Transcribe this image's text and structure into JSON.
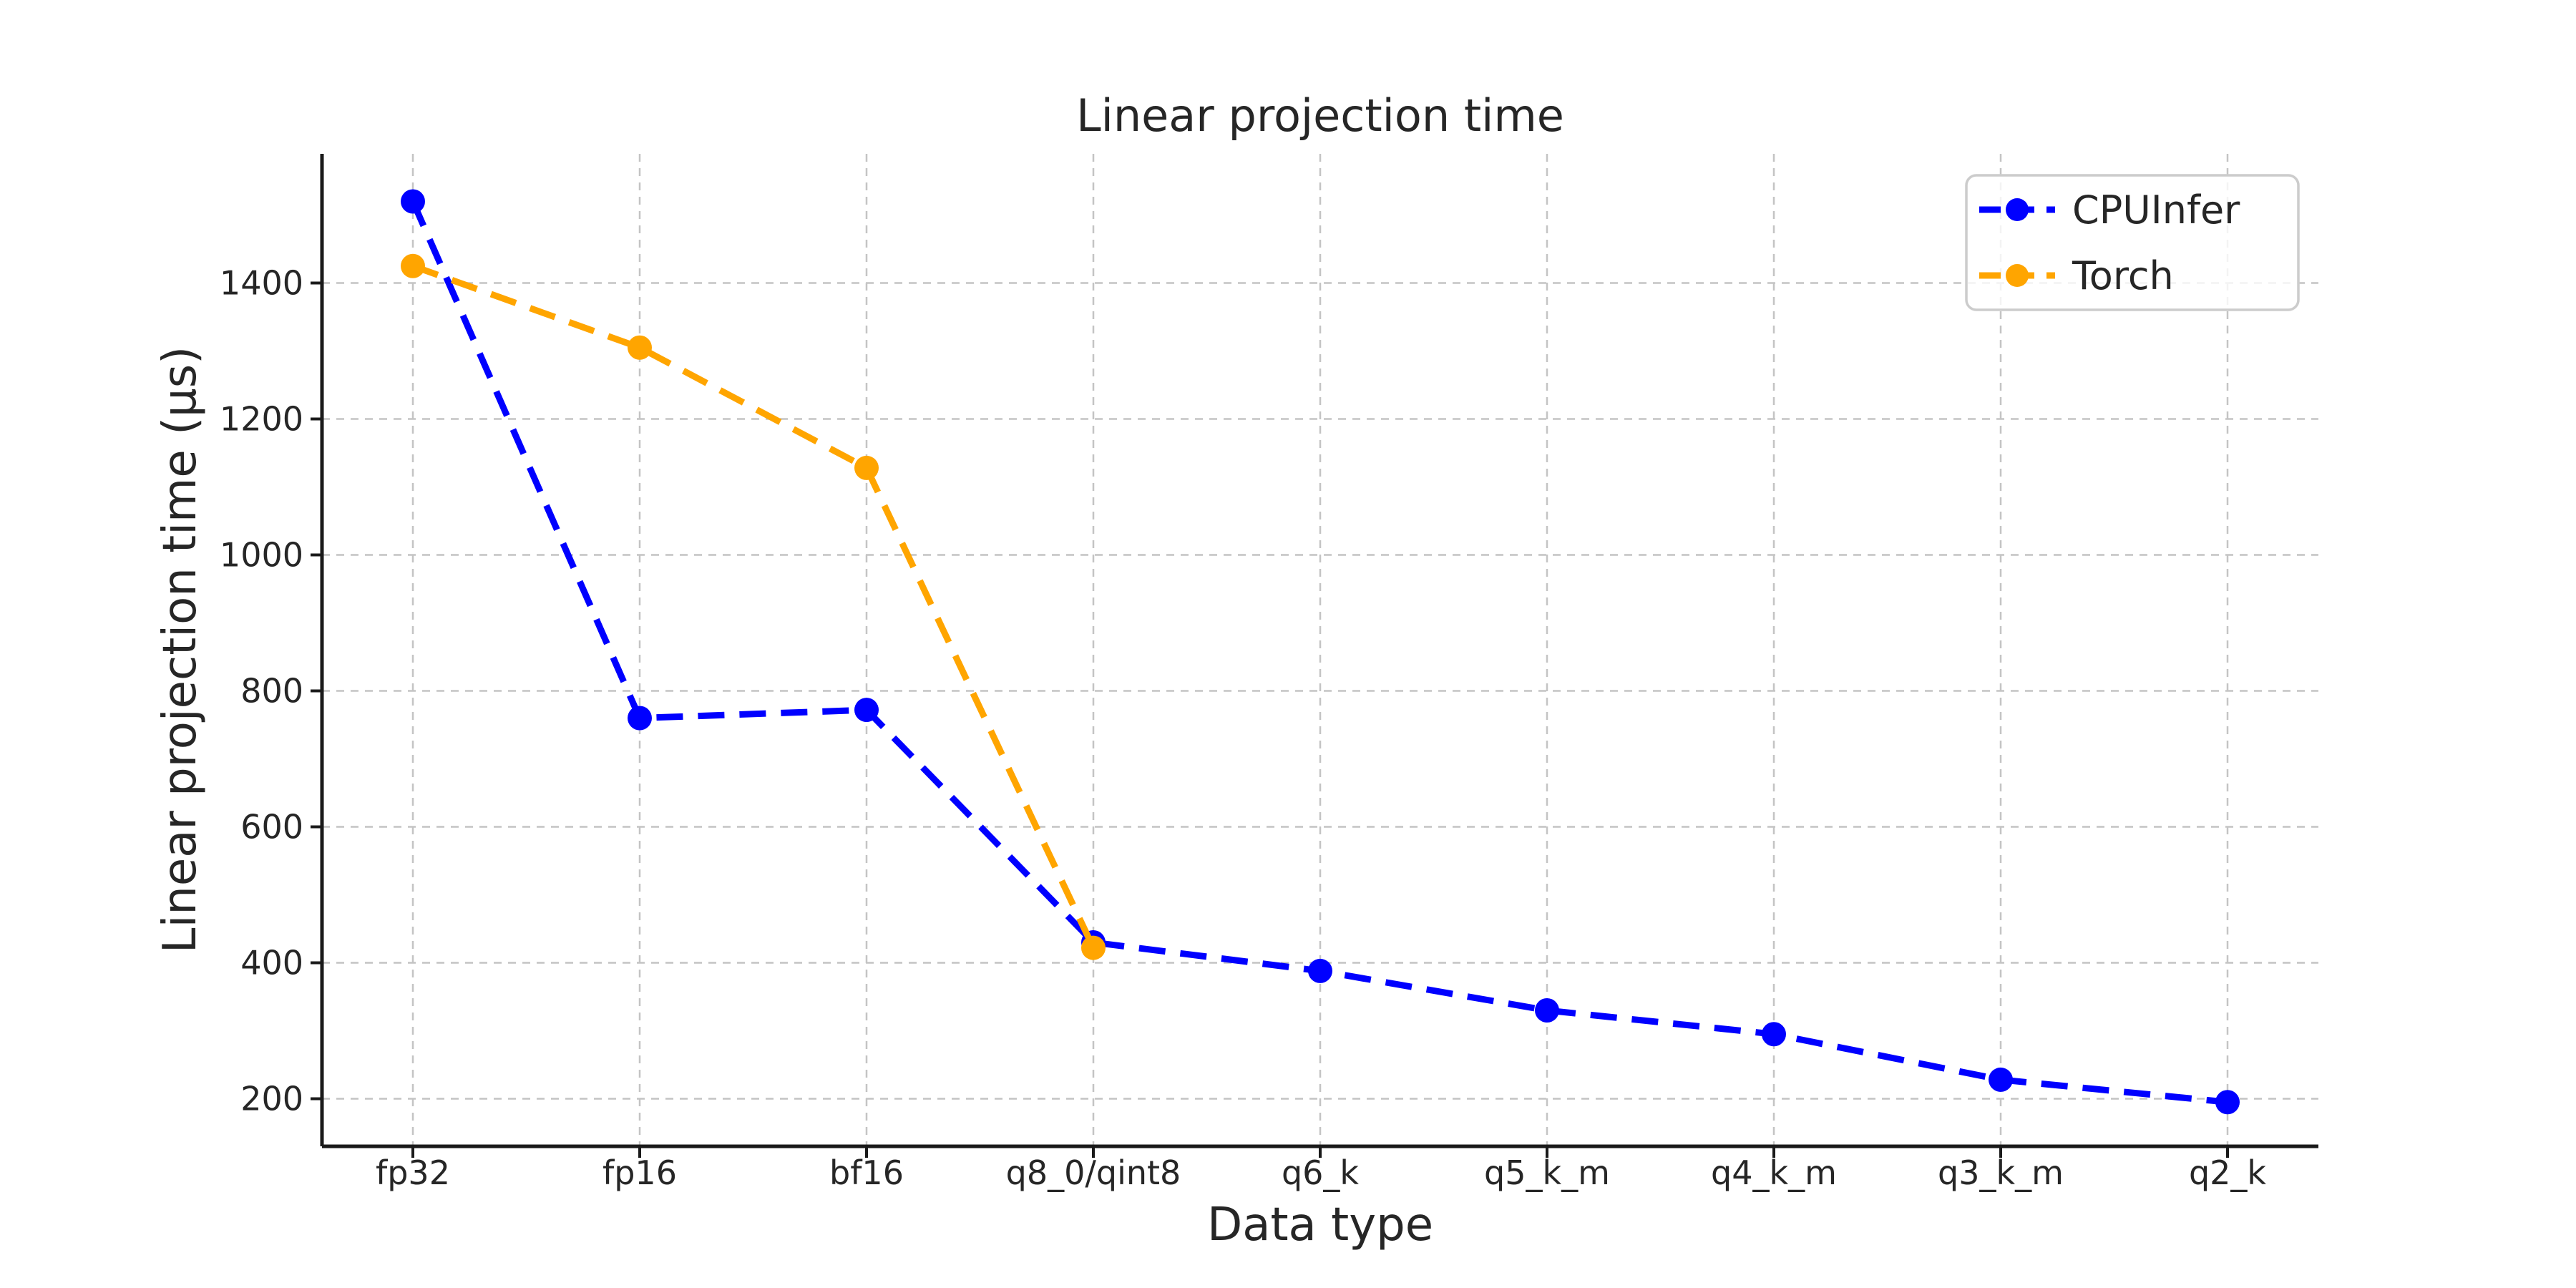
{
  "chart_data": {
    "type": "line",
    "title": "Linear projection time",
    "xlabel": "Data type",
    "ylabel": "Linear projection time (μs)",
    "categories": [
      "fp32",
      "fp16",
      "bf16",
      "q8_0/qint8",
      "q6_k",
      "q5_k_m",
      "q4_k_m",
      "q3_k_m",
      "q2_k"
    ],
    "series": [
      {
        "name": "CPUInfer",
        "color": "#0000ff",
        "values": [
          1520,
          760,
          772,
          430,
          388,
          330,
          295,
          228,
          195
        ]
      },
      {
        "name": "Torch",
        "color": "#ffa500",
        "values": [
          1425,
          1305,
          1128,
          422,
          null,
          null,
          null,
          null,
          null
        ]
      }
    ],
    "yticks": [
      200,
      400,
      600,
      800,
      1000,
      1200,
      1400
    ],
    "ylim": [
      130,
      1590
    ],
    "grid": true,
    "grid_style": "dashed",
    "line_style": "dashed",
    "marker": "circle",
    "legend_position": "upper right",
    "colors": {
      "grid": "#c4c4c4",
      "spine": "#1a1a1a",
      "text": "#262626",
      "legend_border": "#cccccc",
      "background": "#ffffff"
    }
  }
}
